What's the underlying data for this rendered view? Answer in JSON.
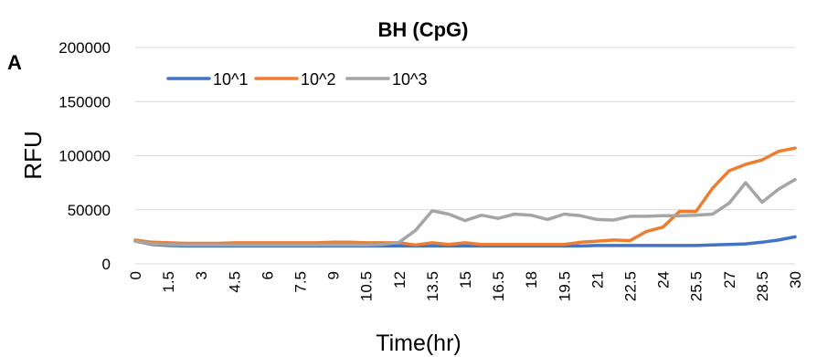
{
  "chart_data": {
    "type": "line",
    "title": "BH (CpG)",
    "panel_label": "A",
    "xlabel": "Time(hr)",
    "ylabel": "RFU",
    "ylim": [
      0,
      200000
    ],
    "yticks": [
      "0",
      "50000",
      "100000",
      "150000",
      "200000"
    ],
    "x": [
      0,
      0.75,
      1.5,
      2.25,
      3,
      3.75,
      4.5,
      5.25,
      6,
      6.75,
      7.5,
      8.25,
      9,
      9.75,
      10.5,
      11.25,
      12,
      12.75,
      13.5,
      14.25,
      15,
      15.75,
      16.5,
      17.25,
      18,
      18.75,
      19.5,
      20.25,
      21,
      21.75,
      22.5,
      23.25,
      24,
      24.75,
      25.5,
      26.25,
      27,
      27.75,
      28.5,
      29.25,
      30
    ],
    "xtick_labels": [
      "0",
      "1.5",
      "3",
      "4.5",
      "6",
      "7.5",
      "9",
      "10.5",
      "12",
      "13.5",
      "15",
      "16.5",
      "18",
      "19.5",
      "21",
      "22.5",
      "24",
      "25.5",
      "27",
      "28.5",
      "30"
    ],
    "grid": true,
    "legend_position": "top-left",
    "series": [
      {
        "name": "10^1",
        "color": "#4472c4",
        "values": [
          21000,
          18000,
          17000,
          16500,
          16500,
          16500,
          16500,
          16500,
          16500,
          16500,
          16500,
          16500,
          16500,
          16500,
          16500,
          16500,
          16500,
          16500,
          16500,
          16500,
          16500,
          16500,
          16500,
          16500,
          16500,
          16500,
          16500,
          16500,
          17000,
          17000,
          17000,
          17000,
          17000,
          17000,
          17000,
          17500,
          18000,
          18500,
          20000,
          22000,
          25000
        ]
      },
      {
        "name": "10^2",
        "color": "#ed7d31",
        "values": [
          22000,
          20000,
          19500,
          19000,
          19000,
          19000,
          19500,
          19500,
          19500,
          19500,
          19500,
          19500,
          20000,
          20000,
          19500,
          19500,
          19500,
          17500,
          19500,
          18000,
          19500,
          18000,
          18000,
          18000,
          18000,
          18000,
          18000,
          20000,
          21000,
          22000,
          21500,
          30000,
          34000,
          48500,
          48500,
          70000,
          86000,
          92000,
          96000,
          104000,
          107000
        ]
      },
      {
        "name": "10^3",
        "color": "#a5a5a5",
        "values": [
          21000,
          18500,
          18000,
          17500,
          17500,
          17500,
          17500,
          17500,
          17500,
          17500,
          17500,
          17500,
          17500,
          17500,
          17500,
          18000,
          20000,
          31000,
          49000,
          46000,
          40000,
          45000,
          42000,
          46000,
          45000,
          41000,
          46000,
          44500,
          41000,
          40500,
          44000,
          44000,
          44500,
          44500,
          45000,
          46000,
          56000,
          75000,
          57000,
          69000,
          78000
        ]
      }
    ]
  }
}
